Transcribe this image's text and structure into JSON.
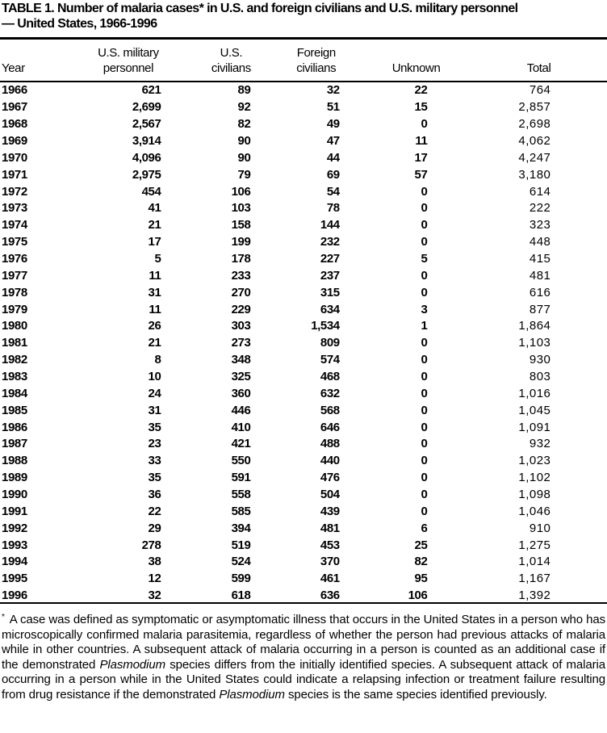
{
  "title": {
    "line1": "TABLE 1. Number of malaria cases* in U.S. and foreign civilians and U.S. military personnel",
    "line2": "— United States, 1966-1996"
  },
  "columns": [
    "Year",
    "U.S. military personnel",
    "U.S. civilians",
    "Foreign civilians",
    "Unknown",
    "Total"
  ],
  "rows": [
    [
      "1966",
      "621",
      "89",
      "32",
      "22",
      "764"
    ],
    [
      "1967",
      "2,699",
      "92",
      "51",
      "15",
      "2,857"
    ],
    [
      "1968",
      "2,567",
      "82",
      "49",
      "0",
      "2,698"
    ],
    [
      "1969",
      "3,914",
      "90",
      "47",
      "11",
      "4,062"
    ],
    [
      "1970",
      "4,096",
      "90",
      "44",
      "17",
      "4,247"
    ],
    [
      "1971",
      "2,975",
      "79",
      "69",
      "57",
      "3,180"
    ],
    [
      "1972",
      "454",
      "106",
      "54",
      "0",
      "614"
    ],
    [
      "1973",
      "41",
      "103",
      "78",
      "0",
      "222"
    ],
    [
      "1974",
      "21",
      "158",
      "144",
      "0",
      "323"
    ],
    [
      "1975",
      "17",
      "199",
      "232",
      "0",
      "448"
    ],
    [
      "1976",
      "5",
      "178",
      "227",
      "5",
      "415"
    ],
    [
      "1977",
      "11",
      "233",
      "237",
      "0",
      "481"
    ],
    [
      "1978",
      "31",
      "270",
      "315",
      "0",
      "616"
    ],
    [
      "1979",
      "11",
      "229",
      "634",
      "3",
      "877"
    ],
    [
      "1980",
      "26",
      "303",
      "1,534",
      "1",
      "1,864"
    ],
    [
      "1981",
      "21",
      "273",
      "809",
      "0",
      "1,103"
    ],
    [
      "1982",
      "8",
      "348",
      "574",
      "0",
      "930"
    ],
    [
      "1983",
      "10",
      "325",
      "468",
      "0",
      "803"
    ],
    [
      "1984",
      "24",
      "360",
      "632",
      "0",
      "1,016"
    ],
    [
      "1985",
      "31",
      "446",
      "568",
      "0",
      "1,045"
    ],
    [
      "1986",
      "35",
      "410",
      "646",
      "0",
      "1,091"
    ],
    [
      "1987",
      "23",
      "421",
      "488",
      "0",
      "932"
    ],
    [
      "1988",
      "33",
      "550",
      "440",
      "0",
      "1,023"
    ],
    [
      "1989",
      "35",
      "591",
      "476",
      "0",
      "1,102"
    ],
    [
      "1990",
      "36",
      "558",
      "504",
      "0",
      "1,098"
    ],
    [
      "1991",
      "22",
      "585",
      "439",
      "0",
      "1,046"
    ],
    [
      "1992",
      "29",
      "394",
      "481",
      "6",
      "910"
    ],
    [
      "1993",
      "278",
      "519",
      "453",
      "25",
      "1,275"
    ],
    [
      "1994",
      "38",
      "524",
      "370",
      "82",
      "1,014"
    ],
    [
      "1995",
      "12",
      "599",
      "461",
      "95",
      "1,167"
    ],
    [
      "1996",
      "32",
      "618",
      "636",
      "106",
      "1,392"
    ]
  ],
  "footnote": {
    "marker": "*",
    "parts": [
      "A case was defined as symptomatic or asymptomatic illness that occurs in the United States in a person who has microscopically confirmed malaria parasitemia, regardless of whether the person had previous attacks of malaria while in other countries. A subsequent attack of malaria occurring in a person is counted as an additional case if the demonstrated ",
      "Plasmo­dium",
      " species differs from the initially identified species. A subsequent attack of malaria occurring in a person while in the United States could indicate a relapsing infection or treatment failure resulting from drug resistance if the demonstrated ",
      "Plasmodium",
      " species is the same species identified previously."
    ]
  }
}
